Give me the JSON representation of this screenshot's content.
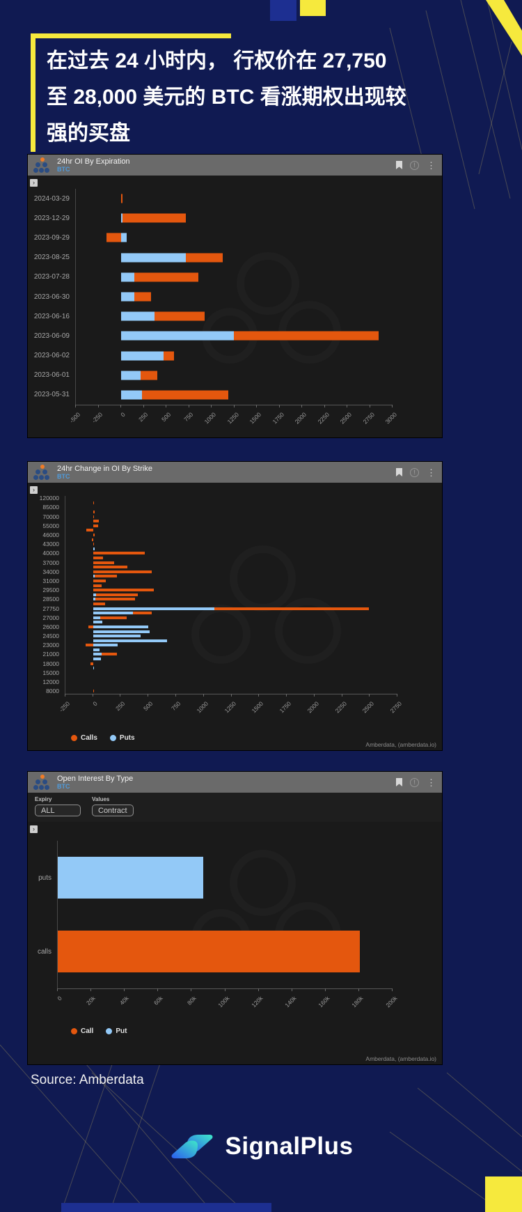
{
  "headline": {
    "lines": [
      "在过去 24 小时内， 行权价在 27,750",
      "至 28,000 美元的 BTC 看涨期权出现较",
      "强的买盘"
    ]
  },
  "source": "Source: Amberdata",
  "brand": "SignalPlus",
  "filters": {
    "expiry_label": "Expiry",
    "expiry_value": "ALL",
    "values_label": "Values",
    "values_value": "Contract"
  },
  "colors": {
    "background": "#101a52",
    "accent_yellow": "#f6e93d",
    "calls_orange": "#e4570e",
    "puts_blue": "#93c9f7",
    "panel_header": "#6a6a6a",
    "panel_body": "#1a1a1a",
    "brand_gradient": [
      "#2b5cf0",
      "#3fe8c8"
    ]
  },
  "icons": {
    "panel_header": [
      "bookmark-icon",
      "info-icon",
      "kebab-menu-icon"
    ],
    "expand": "chevron-expand-icon",
    "logo": "amberdata-logo-icon"
  },
  "chart_data": [
    {
      "type": "bar",
      "orientation": "horizontal",
      "title": "24hr OI By Expiration",
      "subtitle": "BTC",
      "categories": [
        "2024-03-29",
        "2023-12-29",
        "2023-09-29",
        "2023-08-25",
        "2023-07-28",
        "2023-06-30",
        "2023-06-16",
        "2023-06-09",
        "2023-06-02",
        "2023-06-01",
        "2023-05-31"
      ],
      "series": [
        {
          "name": "Calls",
          "color": "#e4570e",
          "values": [
            15,
            700,
            -160,
            410,
            710,
            180,
            560,
            1600,
            115,
            180,
            950
          ]
        },
        {
          "name": "Puts",
          "color": "#93c9f7",
          "values": [
            0,
            15,
            65,
            715,
            145,
            150,
            370,
            1250,
            470,
            220,
            235
          ]
        }
      ],
      "stack_order": [
        1,
        0
      ],
      "xlim": [
        -500,
        3000
      ],
      "xticks": [
        "-500",
        "-250",
        "0",
        "250",
        "500",
        "750",
        "1000",
        "1250",
        "1500",
        "1750",
        "2000",
        "2250",
        "2500",
        "2750",
        "3000"
      ],
      "grid": false,
      "legend_position": "none"
    },
    {
      "type": "bar",
      "orientation": "horizontal",
      "title": "24hr Change in OI By Strike",
      "subtitle": "BTC",
      "categories": [
        "120000",
        "",
        "85000",
        "",
        "70000",
        "",
        "55000",
        "",
        "46000",
        "",
        "43000",
        "",
        "40000",
        "",
        "37000",
        "",
        "34000",
        "",
        "31000",
        "",
        "29500",
        "",
        "28500",
        "",
        "27750",
        "",
        "27000",
        "",
        "26000",
        "",
        "24500",
        "",
        "23000",
        "",
        "21000",
        "",
        "18000",
        "",
        "15000",
        "",
        "12000",
        "",
        "8000"
      ],
      "series": [
        {
          "name": "Calls",
          "color": "#e4570e",
          "values": [
            0,
            8,
            0,
            15,
            10,
            50,
            45,
            -60,
            15,
            -12,
            8,
            0,
            470,
            90,
            190,
            310,
            530,
            200,
            115,
            75,
            550,
            380,
            360,
            110,
            1400,
            170,
            240,
            0,
            -40,
            0,
            0,
            0,
            -70,
            0,
            140,
            0,
            -25,
            0,
            0,
            0,
            0,
            0,
            5
          ]
        },
        {
          "name": "Puts",
          "color": "#93c9f7",
          "values": [
            0,
            0,
            0,
            0,
            0,
            0,
            0,
            0,
            0,
            0,
            0,
            15,
            0,
            0,
            0,
            0,
            0,
            15,
            0,
            0,
            0,
            25,
            20,
            0,
            1100,
            360,
            65,
            85,
            500,
            510,
            430,
            670,
            220,
            60,
            75,
            70,
            0,
            10,
            0,
            0,
            0,
            0,
            0
          ]
        }
      ],
      "stack_order": [
        1,
        0
      ],
      "xlim": [
        -250,
        2750
      ],
      "xticks": [
        "-250",
        "0",
        "250",
        "500",
        "750",
        "1000",
        "1250",
        "1500",
        "1750",
        "2000",
        "2250",
        "2500",
        "2750"
      ],
      "grid": false,
      "legend": [
        "Calls",
        "Puts"
      ],
      "legend_position": "bottom-left",
      "credit": "Amberdata, (amberdata.io)"
    },
    {
      "type": "bar",
      "orientation": "horizontal",
      "title": "Open Interest By Type",
      "subtitle": "BTC",
      "categories": [
        "puts",
        "calls"
      ],
      "series": [
        {
          "name": "Call",
          "color": "#e4570e",
          "values": [
            0,
            181000
          ]
        },
        {
          "name": "Put",
          "color": "#93c9f7",
          "values": [
            87000,
            0
          ]
        }
      ],
      "stack_order": [
        1,
        0
      ],
      "xlim": [
        0,
        200000
      ],
      "xticks": [
        "0",
        "20k",
        "40k",
        "60k",
        "80k",
        "100k",
        "120k",
        "140k",
        "160k",
        "180k",
        "200k"
      ],
      "grid": false,
      "legend": [
        "Call",
        "Put"
      ],
      "legend_position": "bottom-left",
      "credit": "Amberdata, (amberdata.io)"
    }
  ]
}
